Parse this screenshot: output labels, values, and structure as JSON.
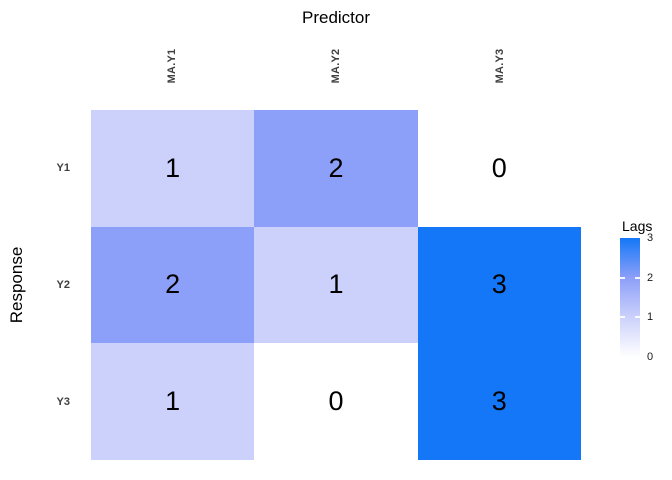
{
  "chart_data": {
    "type": "heatmap",
    "xlabel": "Predictor",
    "ylabel": "Response",
    "x_categories": [
      "MA.Y1",
      "MA.Y2",
      "MA.Y3"
    ],
    "y_categories": [
      "Y1",
      "Y2",
      "Y3"
    ],
    "values": [
      [
        1,
        2,
        0
      ],
      [
        2,
        1,
        3
      ],
      [
        1,
        0,
        3
      ]
    ],
    "legend": {
      "title": "Lags",
      "position": "right",
      "min": 0,
      "max": 3,
      "tick_labels": [
        "3",
        "2",
        "1",
        "0"
      ]
    },
    "color_scale": {
      "0": "#FFFFFF",
      "1": "#CBD1FB",
      "2": "#8C9FF9",
      "3": "#1477F7"
    },
    "value_text_color": "#000000",
    "grid": "off",
    "axis_lines": "off"
  }
}
